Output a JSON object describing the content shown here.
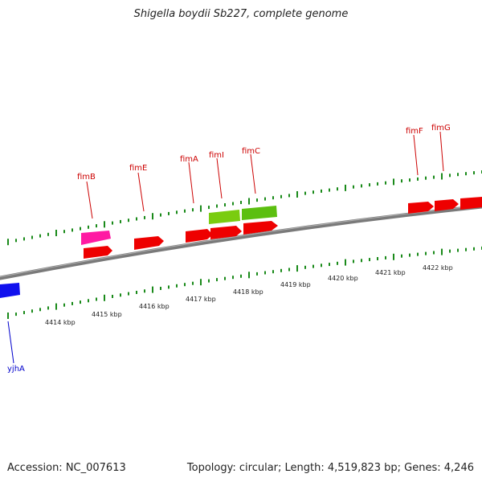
{
  "title": "Shigella boydii Sb227, complete genome",
  "footer": {
    "accession": "Accession: NC_007613",
    "summary": "Topology: circular; Length: 4,519,823 bp; Genes: 4,246"
  },
  "colors": {
    "backbone": "#808080",
    "tick": "#1a8a1a",
    "gene_red": "#ff0000",
    "gene_pink": "#ff1aa3",
    "gene_green": "#66cc00",
    "gene_blue": "#0000ff",
    "label_red": "#cc0000",
    "label_blue": "#0000cc"
  },
  "scale": {
    "unit": "kbp",
    "labels": [
      "4414 kbp",
      "4415 kbp",
      "4416 kbp",
      "4417 kbp",
      "4418 kbp",
      "4419 kbp",
      "4420 kbp",
      "4421 kbp",
      "4422 kbp"
    ]
  },
  "gene_labels": [
    {
      "name": "fimB",
      "strand": "forward"
    },
    {
      "name": "fimE",
      "strand": "forward"
    },
    {
      "name": "fimA",
      "strand": "forward"
    },
    {
      "name": "fimI",
      "strand": "forward"
    },
    {
      "name": "fimC",
      "strand": "forward"
    },
    {
      "name": "fimF",
      "strand": "forward"
    },
    {
      "name": "fimG",
      "strand": "forward"
    },
    {
      "name": "yjhA",
      "strand": "reverse"
    }
  ]
}
